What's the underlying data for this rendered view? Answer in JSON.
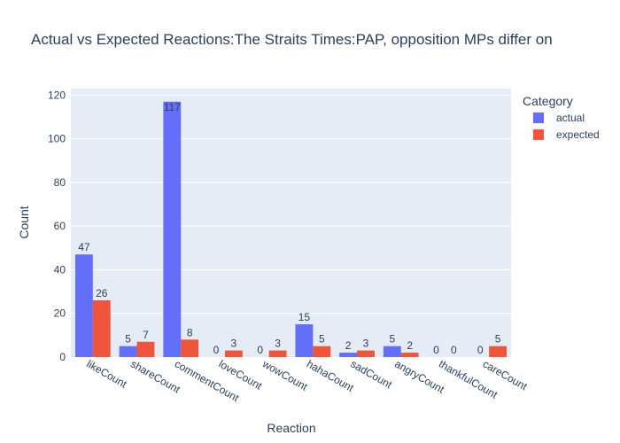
{
  "chart_data": {
    "type": "bar",
    "title": "Actual vs Expected Reactions:The Straits Times:PAP, opposition MPs differ on",
    "xlabel": "Reaction",
    "ylabel": "Count",
    "ylim": [
      0,
      123
    ],
    "yticks": [
      0,
      20,
      40,
      60,
      80,
      100,
      120
    ],
    "grid": true,
    "legend_position": "top-right",
    "legend_title": "Category",
    "categories": [
      "likeCount",
      "shareCount",
      "commentCount",
      "loveCount",
      "wowCount",
      "hahaCount",
      "sadCount",
      "angryCount",
      "thankfulCount",
      "careCount"
    ],
    "series": [
      {
        "name": "actual",
        "color": "#636efa",
        "values": [
          47,
          5,
          117,
          0,
          0,
          15,
          2,
          5,
          0,
          0
        ]
      },
      {
        "name": "expected",
        "color": "#ef553b",
        "values": [
          26,
          7,
          8,
          3,
          3,
          5,
          3,
          2,
          0,
          5
        ]
      }
    ]
  },
  "colors": {
    "plot_background": "#e5ecf6",
    "gridline": "#ffffff",
    "text": "#2a3f5f"
  }
}
